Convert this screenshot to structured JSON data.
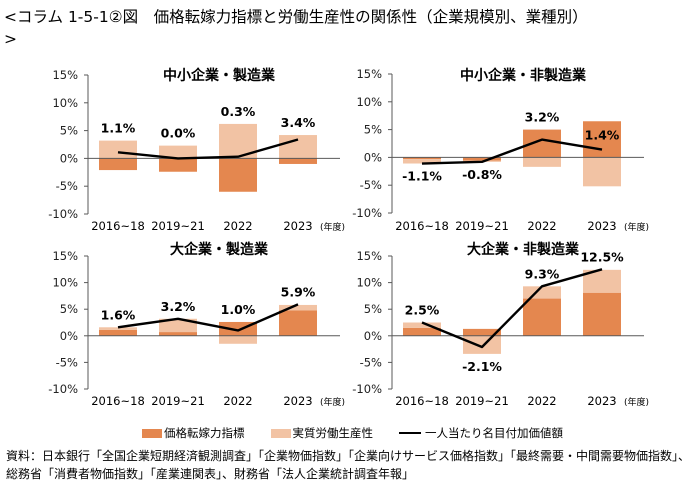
{
  "title": {
    "line1": "<コラム 1-5-1②図　価格転嫁力指標と労働生産性の関係性（企業規模別、業種別）",
    "line2": ">"
  },
  "colors": {
    "price_pass_through": "#E4874F",
    "real_productivity": "#F2C3A4",
    "nominal_value_added": "#000000",
    "axis": "#595959"
  },
  "legend": {
    "items": [
      {
        "label": "価格転嫁力指標",
        "type": "bar",
        "key": "price_pass_through"
      },
      {
        "label": "実質労働生産性",
        "type": "bar",
        "key": "real_productivity"
      },
      {
        "label": "一人当たり名目付加価値額",
        "type": "line",
        "key": "nominal_value_added"
      }
    ]
  },
  "source": "資料：日本銀行「全国企業短期経済観測調査」「企業物価指数」「企業向けサービス価格指数」「最終需要・中間需要物価指数」、総務省「消費者物価指数」「産業連関表」、財務省「法人企業統計調査年報」",
  "chart_data": [
    {
      "type": "bar",
      "title": "中小企業・製造業",
      "categories": [
        "2016~18",
        "2019~21",
        "2022",
        "2023"
      ],
      "x_unit_label": "(年度)",
      "ylim": [
        -10,
        15
      ],
      "yticks": [
        15,
        10,
        5,
        0,
        -5,
        -10
      ],
      "ytick_labels": [
        "15%",
        "10%",
        "5%",
        "0%",
        "-5%",
        "-10%"
      ],
      "series": [
        {
          "name": "価格転嫁力指標",
          "kind": "stacked-bar",
          "values": [
            -2.1,
            -2.4,
            -6.0,
            -1.0
          ]
        },
        {
          "name": "実質労働生産性",
          "kind": "stacked-bar",
          "values": [
            3.2,
            2.3,
            6.2,
            4.2
          ]
        },
        {
          "name": "一人当たり名目付加価値額",
          "kind": "line",
          "values": [
            1.1,
            0.0,
            0.3,
            3.4
          ],
          "labels": [
            "1.1%",
            "0.0%",
            "0.3%",
            "3.4%"
          ]
        }
      ]
    },
    {
      "type": "bar",
      "title": "中小企業・非製造業",
      "categories": [
        "2016~18",
        "2019~21",
        "2022",
        "2023"
      ],
      "x_unit_label": "(年度)",
      "ylim": [
        -10,
        15
      ],
      "yticks": [
        15,
        10,
        5,
        0,
        -5,
        -10
      ],
      "ytick_labels": [
        "15%",
        "10%",
        "5%",
        "0%",
        "-5%",
        "-10%"
      ],
      "series": [
        {
          "name": "価格転嫁力指標",
          "kind": "stacked-bar",
          "values": [
            -0.3,
            -0.6,
            5.0,
            6.5
          ]
        },
        {
          "name": "実質労働生産性",
          "kind": "stacked-bar",
          "values": [
            -0.8,
            -0.2,
            -1.7,
            -5.2
          ]
        },
        {
          "name": "一人当たり名目付加価値額",
          "kind": "line",
          "values": [
            -1.1,
            -0.8,
            3.2,
            1.4
          ],
          "labels": [
            "-1.1%",
            "-0.8%",
            "3.2%",
            "1.4%"
          ]
        }
      ]
    },
    {
      "type": "bar",
      "title": "大企業・製造業",
      "categories": [
        "2016~18",
        "2019~21",
        "2022",
        "2023"
      ],
      "x_unit_label": "(年度)",
      "ylim": [
        -10,
        15
      ],
      "yticks": [
        15,
        10,
        5,
        0,
        -5,
        -10
      ],
      "ytick_labels": [
        "15%",
        "10%",
        "5%",
        "0%",
        "-5%",
        "-10%"
      ],
      "series": [
        {
          "name": "価格転嫁力指標",
          "kind": "stacked-bar",
          "values": [
            1.1,
            0.7,
            2.6,
            4.8
          ]
        },
        {
          "name": "実質労働生産性",
          "kind": "stacked-bar",
          "values": [
            0.5,
            2.5,
            -1.5,
            1.0
          ]
        },
        {
          "name": "一人当たり名目付加価値額",
          "kind": "line",
          "values": [
            1.6,
            3.2,
            1.0,
            5.9
          ],
          "labels": [
            "1.6%",
            "3.2%",
            "1.0%",
            "5.9%"
          ]
        }
      ]
    },
    {
      "type": "bar",
      "title": "大企業・非製造業",
      "categories": [
        "2016~18",
        "2019~21",
        "2022",
        "2023"
      ],
      "x_unit_label": "(年度)",
      "ylim": [
        -10,
        15
      ],
      "yticks": [
        15,
        10,
        5,
        0,
        -5,
        -10
      ],
      "ytick_labels": [
        "15%",
        "10%",
        "5%",
        "0%",
        "-5%",
        "-10%"
      ],
      "series": [
        {
          "name": "価格転嫁力指標",
          "kind": "stacked-bar",
          "values": [
            1.5,
            1.3,
            7.0,
            8.1
          ]
        },
        {
          "name": "実質労働生産性",
          "kind": "stacked-bar",
          "values": [
            1.0,
            -3.4,
            2.3,
            4.3
          ]
        },
        {
          "name": "一人当たり名目付加価値額",
          "kind": "line",
          "values": [
            2.5,
            -2.1,
            9.3,
            12.5
          ],
          "labels": [
            "2.5%",
            "-2.1%",
            "9.3%",
            "12.5%"
          ]
        }
      ]
    }
  ]
}
